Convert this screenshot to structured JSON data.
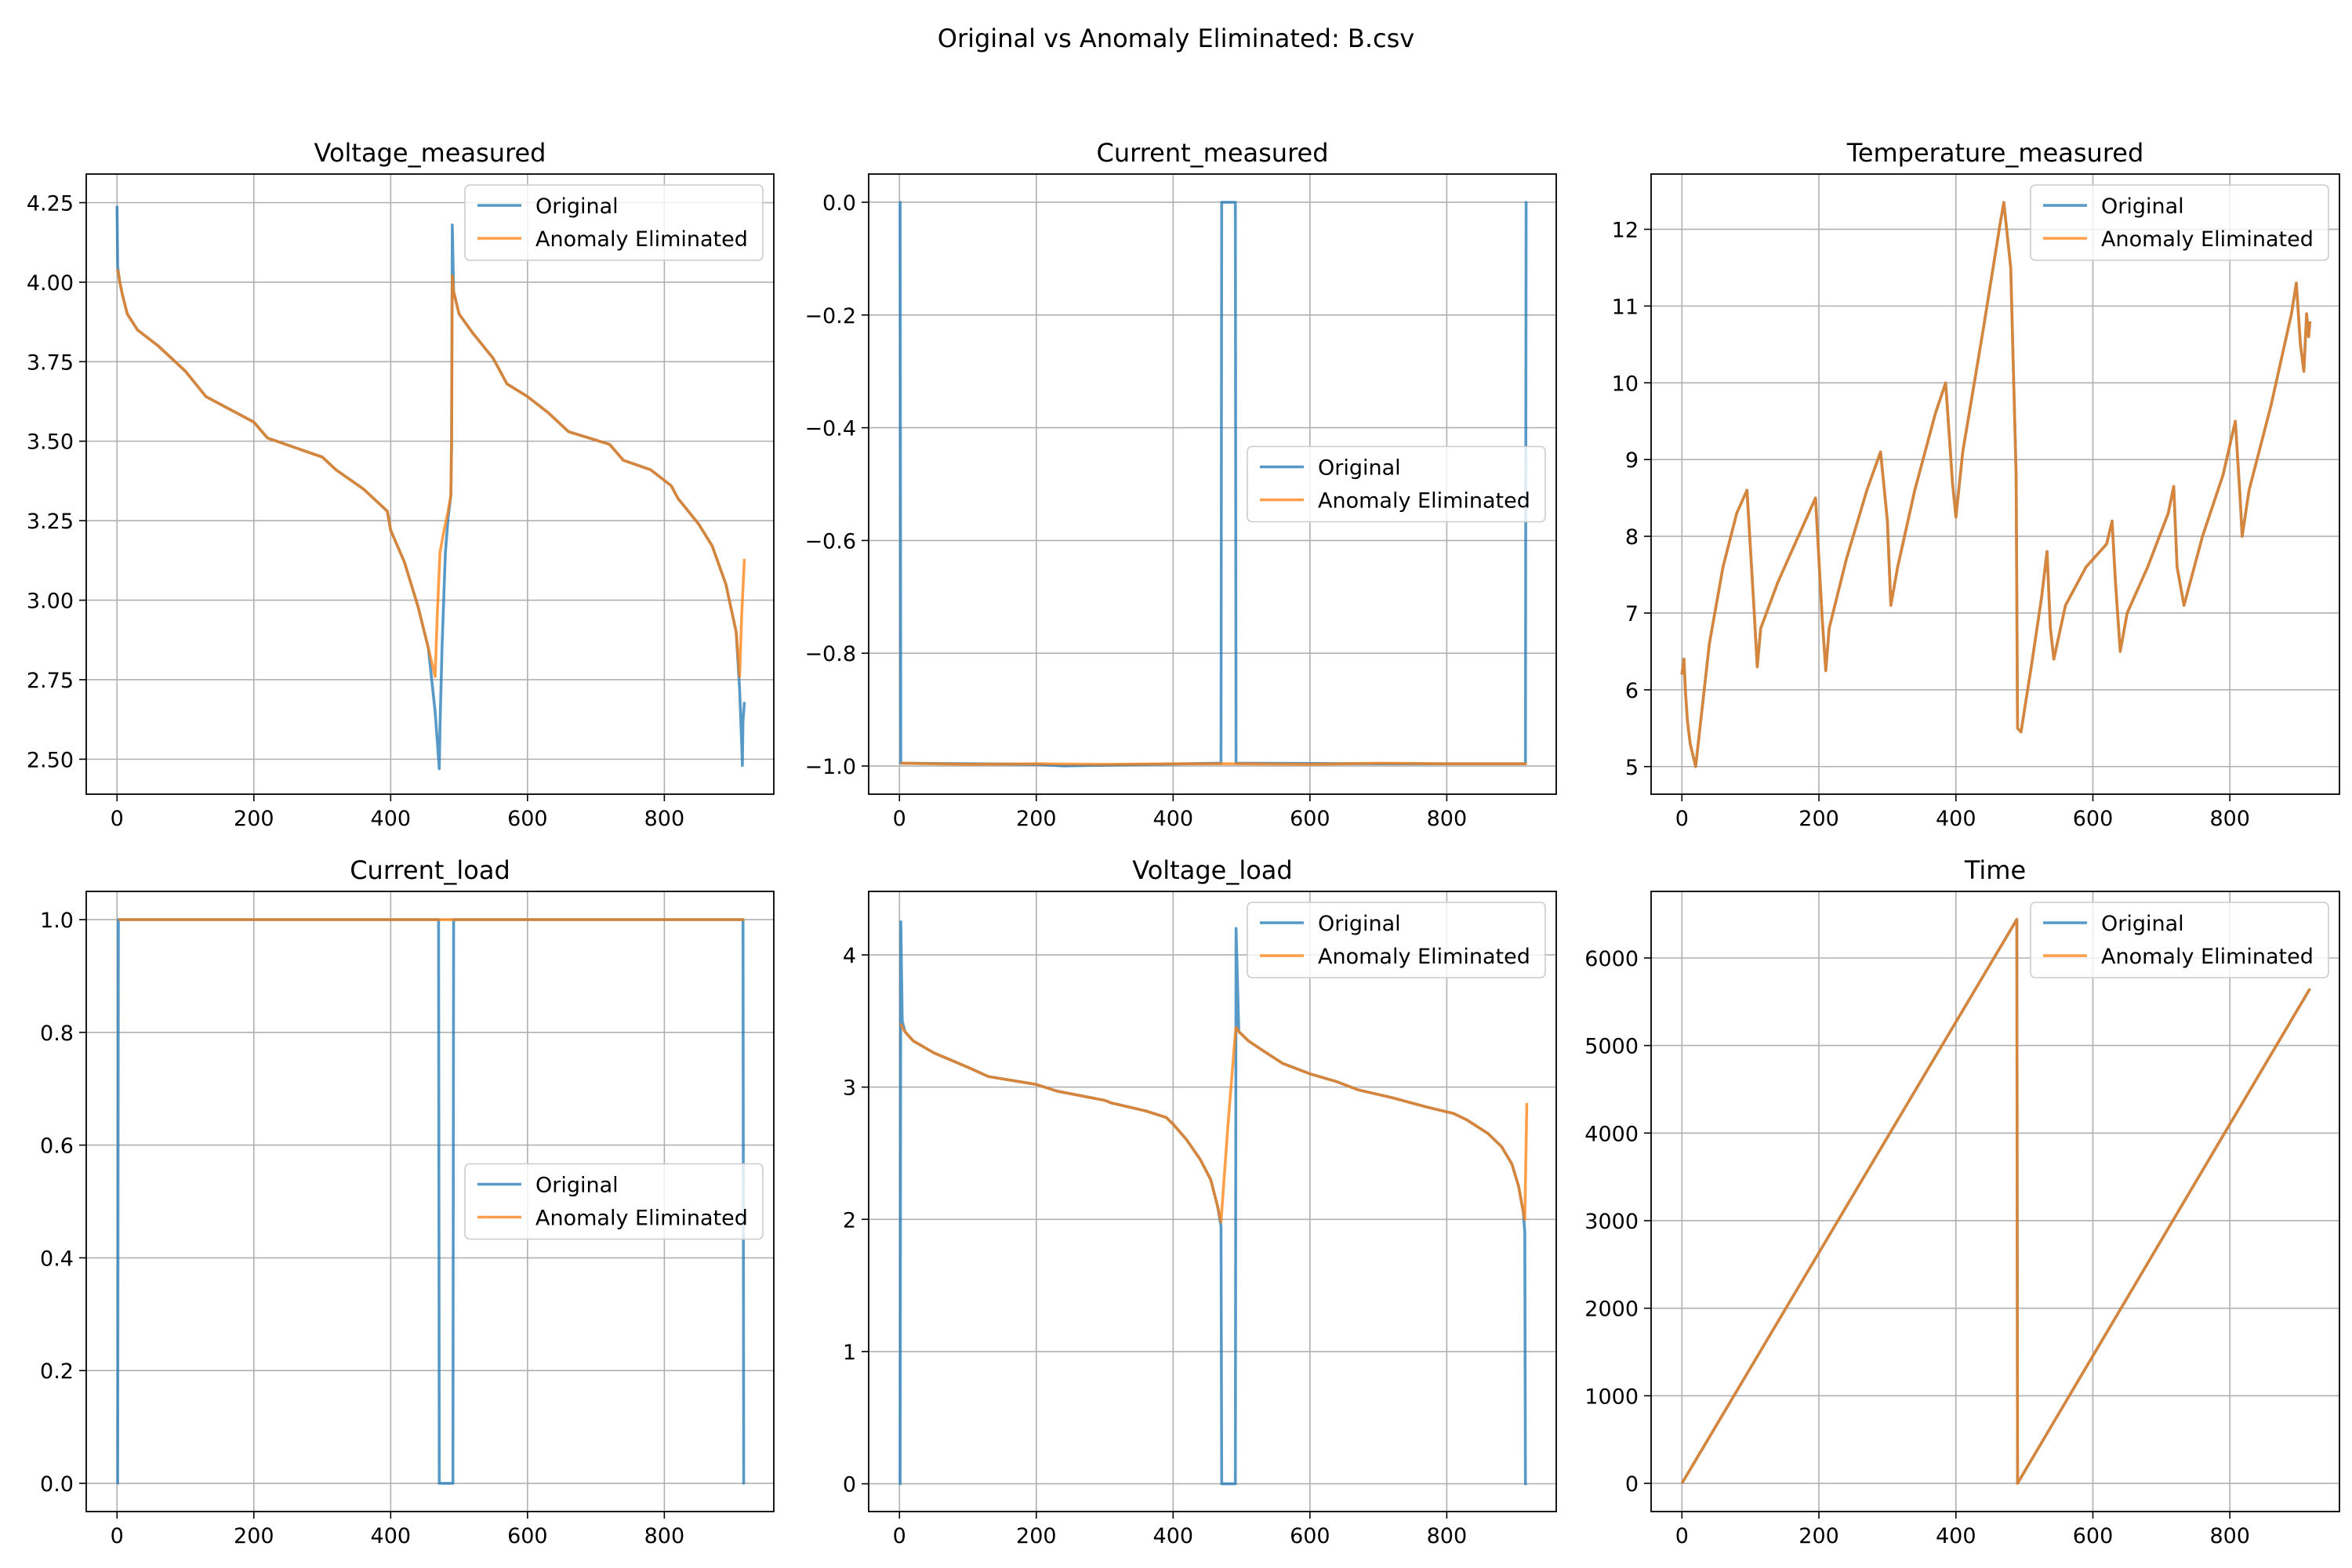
{
  "figure": {
    "title": "Original vs Anomaly Eliminated: B.csv"
  },
  "colors": {
    "original": "#1f77b4",
    "eliminated": "#ff7f0e",
    "grid": "#b0b0b0"
  },
  "chart_data": [
    {
      "type": "line",
      "title": "Voltage_measured",
      "xlim": [
        -45,
        960
      ],
      "ylim": [
        2.39,
        4.34
      ],
      "xticks": [
        0,
        200,
        400,
        600,
        800
      ],
      "yticks": [
        2.5,
        2.75,
        3.0,
        3.25,
        3.5,
        3.75,
        4.0,
        4.25
      ],
      "ytick_labels": [
        "2.50",
        "2.75",
        "3.00",
        "3.25",
        "3.50",
        "3.75",
        "4.00",
        "4.25"
      ],
      "grid": true,
      "legend": "upper-right",
      "series": [
        {
          "name": "Original",
          "x": [
            0,
            1,
            2,
            4,
            8,
            15,
            30,
            60,
            100,
            130,
            200,
            220,
            300,
            320,
            360,
            395,
            400,
            420,
            440,
            455,
            465,
            471,
            472,
            475,
            480,
            484,
            488,
            489,
            490,
            492,
            500,
            520,
            550,
            570,
            600,
            630,
            660,
            720,
            740,
            780,
            810,
            820,
            850,
            870,
            890,
            905,
            910,
            913,
            914,
            915,
            917
          ],
          "y": [
            4.24,
            4.05,
            4.03,
            4.0,
            3.96,
            3.9,
            3.85,
            3.8,
            3.72,
            3.64,
            3.56,
            3.51,
            3.45,
            3.41,
            3.35,
            3.28,
            3.22,
            3.12,
            2.98,
            2.85,
            2.65,
            2.47,
            2.6,
            2.85,
            3.15,
            3.26,
            3.33,
            3.5,
            4.18,
            3.97,
            3.9,
            3.84,
            3.76,
            3.68,
            3.64,
            3.59,
            3.53,
            3.49,
            3.44,
            3.41,
            3.36,
            3.32,
            3.24,
            3.17,
            3.05,
            2.9,
            2.72,
            2.55,
            2.48,
            2.62,
            2.68
          ]
        },
        {
          "name": "Anomaly Eliminated",
          "x": [
            0,
            2,
            4,
            8,
            15,
            30,
            60,
            100,
            130,
            200,
            220,
            300,
            320,
            360,
            395,
            400,
            420,
            440,
            455,
            465,
            468,
            472,
            478,
            484,
            488,
            489,
            490,
            492,
            500,
            520,
            550,
            570,
            600,
            630,
            660,
            720,
            740,
            780,
            810,
            820,
            850,
            870,
            890,
            905,
            910,
            913,
            917
          ],
          "y": [
            4.04,
            4.03,
            4.0,
            3.96,
            3.9,
            3.85,
            3.8,
            3.72,
            3.64,
            3.56,
            3.51,
            3.45,
            3.41,
            3.35,
            3.28,
            3.22,
            3.12,
            2.98,
            2.85,
            2.76,
            2.95,
            3.15,
            3.22,
            3.28,
            3.33,
            3.5,
            4.02,
            3.97,
            3.9,
            3.84,
            3.76,
            3.68,
            3.64,
            3.59,
            3.53,
            3.49,
            3.44,
            3.41,
            3.36,
            3.32,
            3.24,
            3.17,
            3.05,
            2.9,
            2.76,
            2.95,
            3.13
          ]
        }
      ]
    },
    {
      "type": "line",
      "title": "Current_measured",
      "xlim": [
        -45,
        960
      ],
      "ylim": [
        -1.05,
        0.05
      ],
      "xticks": [
        0,
        200,
        400,
        600,
        800
      ],
      "yticks": [
        -1.0,
        -0.8,
        -0.6,
        -0.4,
        -0.2,
        0.0
      ],
      "ytick_labels": [
        "−1.0",
        "−0.8",
        "−0.6",
        "−0.4",
        "−0.2",
        "0.0"
      ],
      "grid": true,
      "legend": "center-right",
      "series": [
        {
          "name": "Original",
          "x": [
            0,
            1,
            2,
            200,
            240,
            469,
            470,
            471,
            490,
            491,
            492,
            700,
            915,
            916,
            917
          ],
          "y": [
            0.0,
            0.0,
            -0.995,
            -0.997,
            -1.0,
            -0.995,
            -0.995,
            0.0,
            0.0,
            0.0,
            -0.995,
            -0.996,
            -0.996,
            0.0,
            0.0
          ]
        },
        {
          "name": "Anomaly Eliminated",
          "x": [
            2,
            100,
            200,
            300,
            400,
            470,
            490,
            600,
            700,
            800,
            917
          ],
          "y": [
            -0.995,
            -0.997,
            -0.996,
            -0.997,
            -0.996,
            -0.996,
            -0.996,
            -0.997,
            -0.995,
            -0.996,
            -0.996
          ]
        }
      ]
    },
    {
      "type": "line",
      "title": "Temperature_measured",
      "xlim": [
        -45,
        960
      ],
      "ylim": [
        4.64,
        12.72
      ],
      "xticks": [
        0,
        200,
        400,
        600,
        800
      ],
      "yticks": [
        5,
        6,
        7,
        8,
        9,
        10,
        11,
        12
      ],
      "ytick_labels": [
        "5",
        "6",
        "7",
        "8",
        "9",
        "10",
        "11",
        "12"
      ],
      "grid": true,
      "legend": "upper-right",
      "series": [
        {
          "name": "Original",
          "x": [
            0,
            3,
            5,
            8,
            12,
            20,
            40,
            60,
            80,
            95,
            105,
            110,
            115,
            140,
            170,
            195,
            205,
            210,
            215,
            240,
            270,
            290,
            300,
            305,
            315,
            340,
            370,
            385,
            395,
            400,
            410,
            440,
            465,
            470,
            480,
            488,
            490,
            495,
            510,
            525,
            533,
            538,
            543,
            560,
            590,
            620,
            628,
            633,
            640,
            650,
            680,
            710,
            718,
            723,
            733,
            760,
            790,
            808,
            815,
            818,
            828,
            860,
            890,
            897,
            903,
            908,
            912,
            915,
            917
          ],
          "y": [
            6.2,
            6.4,
            6.0,
            5.6,
            5.3,
            5.0,
            6.6,
            7.6,
            8.3,
            8.6,
            7.1,
            6.3,
            6.8,
            7.4,
            8.0,
            8.5,
            6.9,
            6.25,
            6.8,
            7.7,
            8.6,
            9.1,
            8.2,
            7.1,
            7.6,
            8.6,
            9.6,
            10.0,
            8.7,
            8.25,
            9.1,
            10.7,
            12.1,
            12.35,
            11.5,
            8.8,
            5.5,
            5.45,
            6.3,
            7.2,
            7.8,
            6.8,
            6.4,
            7.1,
            7.6,
            7.9,
            8.2,
            7.4,
            6.5,
            7.0,
            7.6,
            8.3,
            8.65,
            7.6,
            7.1,
            8.0,
            8.8,
            9.5,
            8.5,
            8.0,
            8.6,
            9.7,
            10.9,
            11.3,
            10.5,
            10.15,
            10.9,
            10.6,
            10.8
          ]
        },
        {
          "name": "Anomaly Eliminated",
          "x": [
            0,
            3,
            5,
            8,
            12,
            20,
            40,
            60,
            80,
            95,
            105,
            110,
            115,
            140,
            170,
            195,
            205,
            210,
            215,
            240,
            270,
            290,
            300,
            305,
            315,
            340,
            370,
            385,
            395,
            400,
            410,
            440,
            465,
            470,
            480,
            488,
            490,
            495,
            510,
            525,
            533,
            538,
            543,
            560,
            590,
            620,
            628,
            633,
            640,
            650,
            680,
            710,
            718,
            723,
            733,
            760,
            790,
            808,
            815,
            818,
            828,
            860,
            890,
            897,
            903,
            908,
            912,
            915,
            917
          ],
          "y": [
            6.2,
            6.4,
            6.0,
            5.6,
            5.3,
            5.0,
            6.6,
            7.6,
            8.3,
            8.6,
            7.1,
            6.3,
            6.8,
            7.4,
            8.0,
            8.5,
            6.9,
            6.25,
            6.8,
            7.7,
            8.6,
            9.1,
            8.2,
            7.1,
            7.6,
            8.6,
            9.6,
            10.0,
            8.7,
            8.25,
            9.1,
            10.7,
            12.1,
            12.35,
            11.5,
            8.8,
            5.5,
            5.45,
            6.3,
            7.2,
            7.8,
            6.8,
            6.4,
            7.1,
            7.6,
            7.9,
            8.2,
            7.4,
            6.5,
            7.0,
            7.6,
            8.3,
            8.65,
            7.6,
            7.1,
            8.0,
            8.8,
            9.5,
            8.5,
            8.0,
            8.6,
            9.7,
            10.9,
            11.3,
            10.5,
            10.15,
            10.9,
            10.6,
            10.8
          ]
        }
      ]
    },
    {
      "type": "line",
      "title": "Current_load",
      "xlim": [
        -45,
        960
      ],
      "ylim": [
        -0.05,
        1.05
      ],
      "xticks": [
        0,
        200,
        400,
        600,
        800
      ],
      "yticks": [
        0.0,
        0.2,
        0.4,
        0.6,
        0.8,
        1.0
      ],
      "ytick_labels": [
        "0.0",
        "0.2",
        "0.4",
        "0.6",
        "0.8",
        "1.0"
      ],
      "grid": true,
      "legend": "center-right",
      "series": [
        {
          "name": "Original",
          "x": [
            0,
            1,
            2,
            469,
            470,
            471,
            490,
            491,
            492,
            915,
            916,
            917
          ],
          "y": [
            0.0,
            0.0,
            1.0,
            1.0,
            1.0,
            0.0,
            0.0,
            0.0,
            1.0,
            1.0,
            0.0,
            0.0
          ]
        },
        {
          "name": "Anomaly Eliminated",
          "x": [
            2,
            917
          ],
          "y": [
            1.0,
            1.0
          ]
        }
      ]
    },
    {
      "type": "line",
      "title": "Voltage_load",
      "xlim": [
        -45,
        960
      ],
      "ylim": [
        -0.21,
        4.48
      ],
      "xticks": [
        0,
        200,
        400,
        600,
        800
      ],
      "yticks": [
        0,
        1,
        2,
        3,
        4
      ],
      "ytick_labels": [
        "0",
        "1",
        "2",
        "3",
        "4"
      ],
      "grid": true,
      "legend": "upper-right",
      "series": [
        {
          "name": "Original",
          "x": [
            0,
            1,
            2,
            4,
            8,
            20,
            50,
            100,
            130,
            200,
            230,
            300,
            310,
            360,
            390,
            400,
            420,
            440,
            455,
            465,
            470,
            471,
            490,
            491,
            492,
            496,
            510,
            530,
            560,
            600,
            640,
            670,
            720,
            770,
            810,
            830,
            860,
            880,
            895,
            905,
            912,
            914,
            915,
            916,
            917
          ],
          "y": [
            0.0,
            0.0,
            4.25,
            3.5,
            3.42,
            3.35,
            3.26,
            3.15,
            3.08,
            3.02,
            2.97,
            2.9,
            2.88,
            2.82,
            2.77,
            2.72,
            2.6,
            2.45,
            2.3,
            2.1,
            1.95,
            0.0,
            0.0,
            0.0,
            4.2,
            3.42,
            3.35,
            3.28,
            3.18,
            3.1,
            3.04,
            2.98,
            2.92,
            2.85,
            2.8,
            2.75,
            2.65,
            2.55,
            2.42,
            2.25,
            2.05,
            1.9,
            0.0,
            0.0,
            0.0
          ]
        },
        {
          "name": "Anomaly Eliminated",
          "x": [
            2,
            4,
            8,
            20,
            50,
            100,
            130,
            200,
            230,
            300,
            310,
            360,
            390,
            400,
            420,
            440,
            455,
            465,
            470,
            480,
            490,
            492,
            496,
            510,
            530,
            560,
            600,
            640,
            670,
            720,
            770,
            810,
            830,
            860,
            880,
            895,
            905,
            912,
            914,
            917
          ],
          "y": [
            3.48,
            3.45,
            3.42,
            3.35,
            3.26,
            3.15,
            3.08,
            3.02,
            2.97,
            2.9,
            2.88,
            2.82,
            2.77,
            2.72,
            2.6,
            2.45,
            2.3,
            2.1,
            1.98,
            2.7,
            3.35,
            3.45,
            3.42,
            3.35,
            3.28,
            3.18,
            3.1,
            3.04,
            2.98,
            2.92,
            2.85,
            2.8,
            2.75,
            2.65,
            2.55,
            2.42,
            2.25,
            2.05,
            2.0,
            2.88
          ]
        }
      ]
    },
    {
      "type": "line",
      "title": "Time",
      "xlim": [
        -45,
        960
      ],
      "ylim": [
        -322,
        6760
      ],
      "xticks": [
        0,
        200,
        400,
        600,
        800
      ],
      "yticks": [
        0,
        1000,
        2000,
        3000,
        4000,
        5000,
        6000
      ],
      "ytick_labels": [
        "0",
        "1000",
        "2000",
        "3000",
        "4000",
        "5000",
        "6000"
      ],
      "grid": true,
      "legend": "upper-right",
      "series": [
        {
          "name": "Original",
          "x": [
            0,
            489,
            490,
            917
          ],
          "y": [
            0,
            6440,
            0,
            5650
          ]
        },
        {
          "name": "Anomaly Eliminated",
          "x": [
            0,
            489,
            490,
            917
          ],
          "y": [
            0,
            6440,
            0,
            5650
          ]
        }
      ]
    }
  ]
}
